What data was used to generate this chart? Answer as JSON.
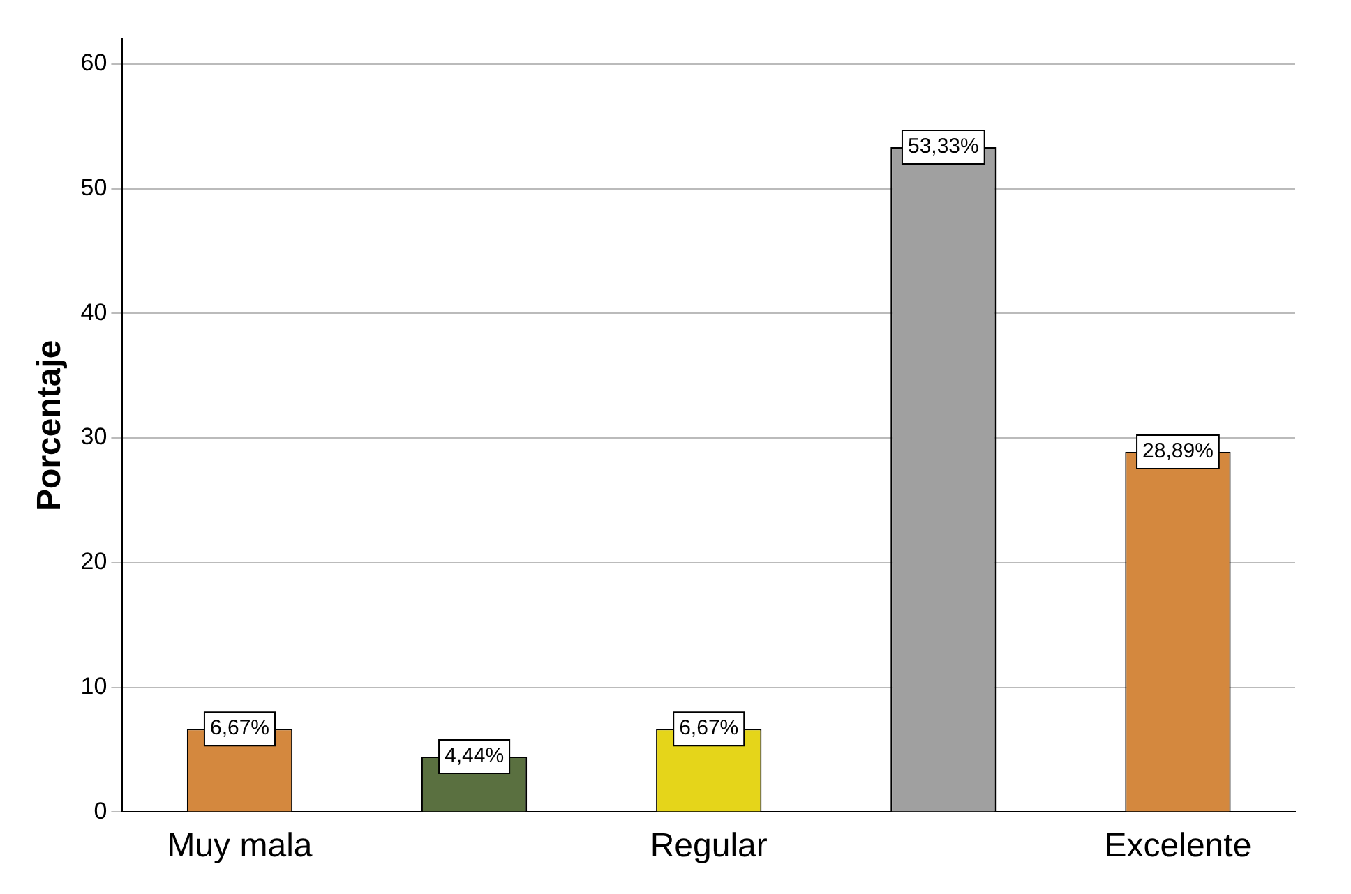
{
  "chart_data": {
    "type": "bar",
    "ylabel": "Porcentaje",
    "categories": [
      "Muy mala",
      null,
      "Regular",
      null,
      "Excelente"
    ],
    "values": [
      6.67,
      4.44,
      6.67,
      53.33,
      28.89
    ],
    "colors": [
      "#d4883e",
      "#5a7040",
      "#e5d51a",
      "#a0a0a0",
      "#d4883e"
    ],
    "value_labels": [
      "6,67%",
      "4,44%",
      "6,67%",
      "53,33%",
      "28,89%"
    ],
    "ylim": [
      0,
      62
    ],
    "yticks": [
      0,
      10,
      20,
      30,
      40,
      50,
      60
    ],
    "grid": "y",
    "legend": false
  }
}
